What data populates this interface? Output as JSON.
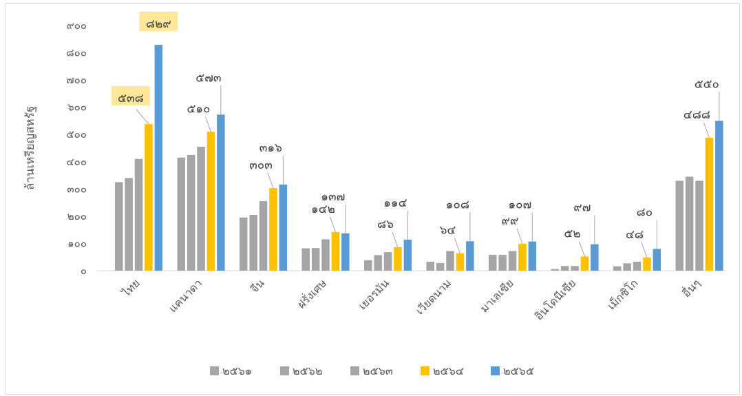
{
  "chart_data": {
    "type": "bar",
    "ylabel": "ล้านเหรียญสหรัฐ",
    "ylim": [
      0,
      900
    ],
    "yticks": [
      "๐",
      "๑๐๐",
      "๒๐๐",
      "๓๐๐",
      "๔๐๐",
      "๕๐๐",
      "๖๐๐",
      "๗๐๐",
      "๘๐๐",
      "๙๐๐"
    ],
    "categories": [
      "ไทย",
      "แคนาดา",
      "จีน",
      "ฝรั่งเศษ",
      "เยอรมัน",
      "เวียดนาม",
      "มาเลเซีย",
      "อินโดนีเซีย",
      "เม็กซิโก",
      "อื่นๆ"
    ],
    "series": [
      {
        "name": "๒๕๖๑",
        "color": "#a5a5a5",
        "values": [
          325,
          415,
          195,
          82,
          38,
          33,
          58,
          6,
          16,
          330
        ]
      },
      {
        "name": "๒๕๖๒",
        "color": "#a5a5a5",
        "values": [
          340,
          425,
          205,
          83,
          57,
          28,
          58,
          17,
          27,
          345
        ]
      },
      {
        "name": "๒๕๖๓",
        "color": "#a5a5a5",
        "values": [
          410,
          455,
          255,
          115,
          68,
          72,
          72,
          17,
          33,
          330
        ]
      },
      {
        "name": "๒๕๖๔",
        "color": "#ffc000",
        "values": [
          538,
          510,
          303,
          142,
          86,
          64,
          99,
          52,
          48,
          488
        ]
      },
      {
        "name": "๒๕๖๕",
        "color": "#5b9bd5",
        "values": [
          829,
          573,
          316,
          137,
          114,
          108,
          107,
          97,
          80,
          550
        ]
      }
    ],
    "data_labels": [
      {
        "category": 0,
        "series": 3,
        "text": "๕๓๘",
        "highlight": true
      },
      {
        "category": 0,
        "series": 4,
        "text": "๘๒๙",
        "highlight": true
      },
      {
        "category": 1,
        "series": 3,
        "text": "๕๑๐"
      },
      {
        "category": 1,
        "series": 4,
        "text": "๕๗๓"
      },
      {
        "category": 2,
        "series": 3,
        "text": "๓๐๓"
      },
      {
        "category": 2,
        "series": 4,
        "text": "๓๑๖"
      },
      {
        "category": 3,
        "series": 3,
        "text": "๑๔๒"
      },
      {
        "category": 3,
        "series": 4,
        "text": "๑๓๗"
      },
      {
        "category": 4,
        "series": 3,
        "text": "๘๖"
      },
      {
        "category": 4,
        "series": 4,
        "text": "๑๑๔"
      },
      {
        "category": 5,
        "series": 3,
        "text": "๖๔"
      },
      {
        "category": 5,
        "series": 4,
        "text": "๑๐๘"
      },
      {
        "category": 6,
        "series": 3,
        "text": "๙๙"
      },
      {
        "category": 6,
        "series": 4,
        "text": "๑๐๗"
      },
      {
        "category": 7,
        "series": 3,
        "text": "๕๒"
      },
      {
        "category": 7,
        "series": 4,
        "text": "๙๗"
      },
      {
        "category": 8,
        "series": 3,
        "text": "๔๘"
      },
      {
        "category": 8,
        "series": 4,
        "text": "๘๐"
      },
      {
        "category": 9,
        "series": 3,
        "text": "๔๘๘"
      },
      {
        "category": 9,
        "series": 4,
        "text": "๕๕๐"
      }
    ],
    "highlight_color": "#ffe699",
    "legend_position": "bottom",
    "grid": false
  }
}
